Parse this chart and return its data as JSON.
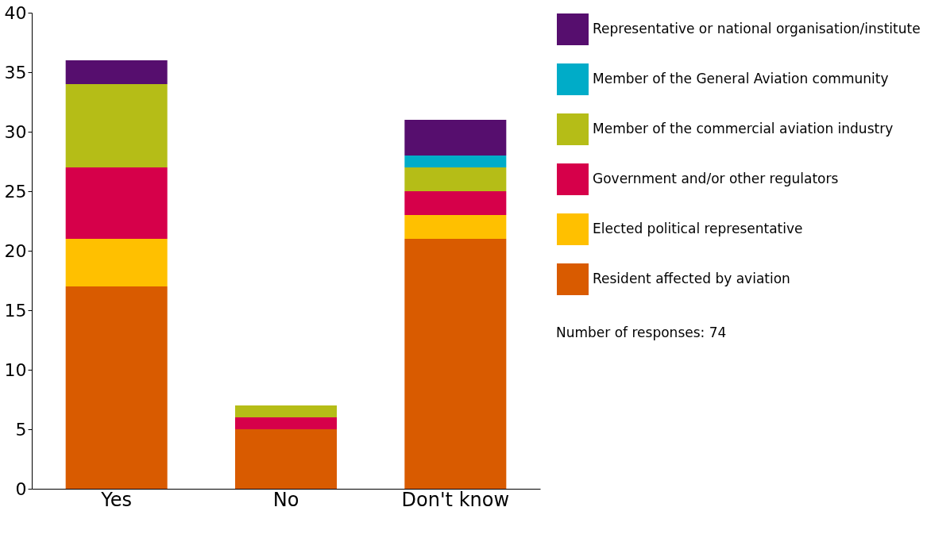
{
  "chart_data": {
    "type": "bar",
    "stacked": true,
    "categories": [
      "Yes",
      "No",
      "Don't know"
    ],
    "series": [
      {
        "name": "Resident affected by aviation",
        "color": "#d95b00",
        "values": [
          17,
          5,
          21
        ]
      },
      {
        "name": "Elected political representative",
        "color": "#ffc000",
        "values": [
          4,
          0,
          2
        ]
      },
      {
        "name": "Government and/or other regulators",
        "color": "#d6004a",
        "values": [
          6,
          1,
          2
        ]
      },
      {
        "name": "Member of the commercial aviation industry",
        "color": "#b5bd17",
        "values": [
          7,
          1,
          2
        ]
      },
      {
        "name": "Member of the General Aviation community",
        "color": "#00acc8",
        "values": [
          0,
          0,
          1
        ]
      },
      {
        "name": "Representative or national organisation/institute",
        "color": "#560e6e",
        "values": [
          2,
          0,
          3
        ]
      }
    ],
    "ylim": [
      0,
      40
    ],
    "yticks": [
      0,
      5,
      10,
      15,
      20,
      25,
      30,
      35,
      40
    ],
    "grid": false,
    "legend": "right",
    "annotations": [
      "Number of responses: 74"
    ]
  }
}
